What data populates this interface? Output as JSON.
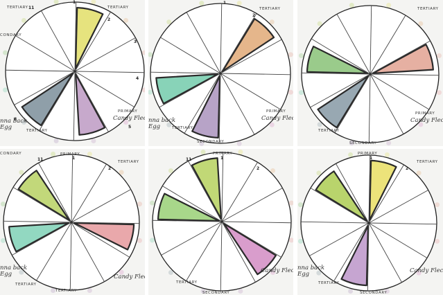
{
  "collage": {
    "panels": [
      {
        "id": "p1",
        "filled": [
          {
            "sector": 0,
            "color": "#e6e37e"
          },
          {
            "sector": 5,
            "color": "#c7a9cc"
          },
          {
            "sector": 7,
            "color": "#8f9fa9"
          }
        ],
        "labels": {
          "top_right": "TERTIARY",
          "top_left": "TERTIARY",
          "left": "CONDARY",
          "primary": "PRIMARY",
          "candy": "Candy Flecs",
          "easter_egg": "nna back\nEgg",
          "bottom": "TERTIARY",
          "n11": "11",
          "n1": "1",
          "n2": "2",
          "n3": "3",
          "n4": "4",
          "n5": "5",
          "n8": "8"
        }
      },
      {
        "id": "p2",
        "filled": [
          {
            "sector": 1,
            "color": "#e5b68b"
          },
          {
            "sector": 6,
            "color": "#b7a3c7"
          },
          {
            "sector": 8,
            "color": "#88d3b8"
          }
        ],
        "labels": {
          "top_right": "TERTIARY",
          "primary": "PRIMARY",
          "candy": "Candy Flecs",
          "easter_egg": "nna back\nEgg",
          "bottom": "TERTIARY",
          "secondary": "SECONDARY",
          "n1": "1",
          "n2": "2"
        }
      },
      {
        "id": "p3",
        "filled": [
          {
            "sector": 2,
            "color": "#e6b0a2"
          },
          {
            "sector": 7,
            "color": "#98a8b2"
          },
          {
            "sector": 9,
            "color": "#9acb8b"
          }
        ],
        "labels": {
          "top_right": "TERTIARY",
          "primary": "PRIMARY",
          "candy": "Candy Flecs",
          "bottom": "TERTIARY",
          "secondary": "SECONDARY"
        }
      },
      {
        "id": "p4",
        "filled": [
          {
            "sector": 3,
            "color": "#e9a8ab"
          },
          {
            "sector": 8,
            "color": "#92d8c1"
          },
          {
            "sector": 10,
            "color": "#c2d87a"
          }
        ],
        "labels": {
          "primary": "PRIMARY",
          "top_left": "CONDARY",
          "candy": "Candy Flecs",
          "easter_egg": "nna back\nEgg",
          "bottom_left": "TERTIARY",
          "bottom_mid": "TERTIARY",
          "tertiary_right": "TERTIARY",
          "n1": "1",
          "n11": "11",
          "n2": "2"
        }
      },
      {
        "id": "p5",
        "filled": [
          {
            "sector": 4,
            "color": "#d99dcc"
          },
          {
            "sector": 9,
            "color": "#a8d78a"
          },
          {
            "sector": 11,
            "color": "#c1d876"
          }
        ],
        "labels": {
          "primary": "PRIMARY",
          "candy": "Candy Flecs",
          "bottom": "TERTIARY",
          "secondary": "SECONDARY",
          "n1": "1",
          "n11": "11",
          "n2": "2"
        }
      },
      {
        "id": "p6",
        "filled": [
          {
            "sector": 0,
            "color": "#ece37a"
          },
          {
            "sector": 6,
            "color": "#c6a5d1"
          },
          {
            "sector": 10,
            "color": "#b9d46c"
          }
        ],
        "labels": {
          "primary": "PRIMARY",
          "candy": "Candy Flecs",
          "easter_egg": "nna back\nEgg",
          "bottom": "TERTIARY",
          "secondary": "SECONDARY",
          "top_right": "TERTIARY",
          "n1": "1",
          "n2": "2"
        }
      }
    ]
  }
}
